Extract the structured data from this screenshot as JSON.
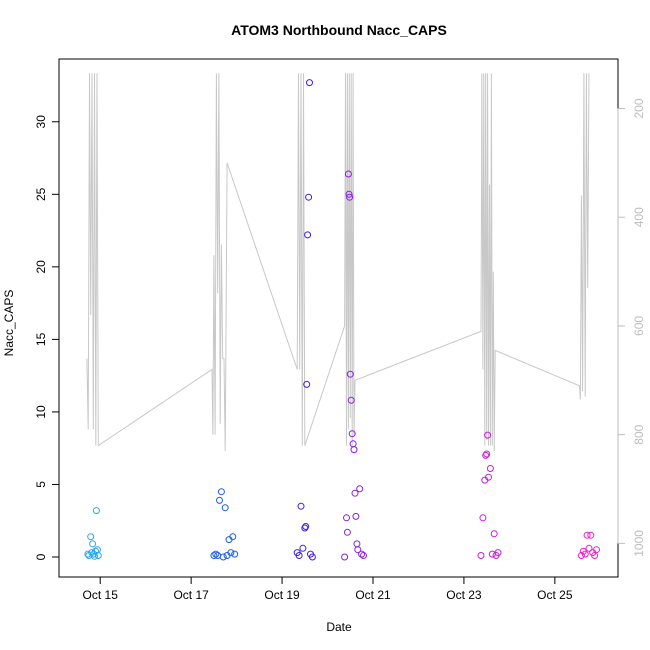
{
  "chart_data": {
    "type": "scatter",
    "title": "ATOM3 Northbound Nacc_CAPS",
    "xlabel": "Date",
    "ylabel": "Nacc_CAPS",
    "x_ticks": [
      {
        "label": "Oct 15",
        "value": "2013-10-15"
      },
      {
        "label": "Oct 17",
        "value": "2013-10-17"
      },
      {
        "label": "Oct 19",
        "value": "2013-10-19"
      },
      {
        "label": "Oct 21",
        "value": "2013-10-21"
      },
      {
        "label": "Oct 23",
        "value": "2013-10-23"
      },
      {
        "label": "Oct 25",
        "value": "2013-10-25"
      }
    ],
    "xlim": [
      "2013-10-14 07:00",
      "2013-10-26 03:00"
    ],
    "ylim": [
      0,
      33.5
    ],
    "y_ticks": [
      0,
      5,
      10,
      15,
      20,
      25,
      30
    ],
    "y2_ticks": [
      200,
      400,
      600,
      800,
      1000
    ],
    "y2lim": [
      1025,
      131
    ],
    "grid": false,
    "series": [
      {
        "type": "points",
        "color": "#29a8f7",
        "points": [
          [
            "2013-10-14 18:00",
            0.1
          ],
          [
            "2013-10-14 19:00",
            1.4
          ],
          [
            "2013-10-14 19:30",
            0.3
          ],
          [
            "2013-10-14 20:00",
            0.9
          ],
          [
            "2013-10-14 20:30",
            0.2
          ],
          [
            "2013-10-14 21:00",
            0.05
          ],
          [
            "2013-10-14 21:30",
            0.4
          ],
          [
            "2013-10-14 22:00",
            3.2
          ],
          [
            "2013-10-14 22:30",
            0.5
          ],
          [
            "2013-10-14 23:00",
            0.1
          ],
          [
            "2013-10-14 17:30",
            0.2
          ]
        ]
      },
      {
        "type": "points",
        "color": "#1f5de8",
        "points": [
          [
            "2013-10-17 13:00",
            0.2
          ],
          [
            "2013-10-17 14:00",
            0.1
          ],
          [
            "2013-10-17 15:00",
            3.9
          ],
          [
            "2013-10-17 16:00",
            4.5
          ],
          [
            "2013-10-17 17:00",
            0.0
          ],
          [
            "2013-10-17 18:00",
            3.4
          ],
          [
            "2013-10-17 19:00",
            0.1
          ],
          [
            "2013-10-17 20:00",
            1.2
          ],
          [
            "2013-10-17 21:00",
            0.3
          ],
          [
            "2013-10-17 22:00",
            1.4
          ],
          [
            "2013-10-17 23:00",
            0.2
          ],
          [
            "2013-10-17 12:00",
            0.1
          ]
        ]
      },
      {
        "type": "points",
        "color": "#3b1fe8",
        "points": [
          [
            "2013-10-19 09:00",
            0.1
          ],
          [
            "2013-10-19 10:00",
            3.5
          ],
          [
            "2013-10-19 11:00",
            0.6
          ],
          [
            "2013-10-19 12:00",
            2.0
          ],
          [
            "2013-10-19 12:30",
            2.1
          ],
          [
            "2013-10-19 13:00",
            11.9
          ],
          [
            "2013-10-19 13:30",
            22.2
          ],
          [
            "2013-10-19 14:00",
            24.8
          ],
          [
            "2013-10-19 14:30",
            32.7
          ],
          [
            "2013-10-19 15:00",
            0.2
          ],
          [
            "2013-10-19 16:00",
            0.0
          ],
          [
            "2013-10-19 08:00",
            0.3
          ]
        ]
      },
      {
        "type": "points",
        "color": "#8c1fe0",
        "points": [
          [
            "2013-10-20 09:00",
            0.0
          ],
          [
            "2013-10-20 10:00",
            2.7
          ],
          [
            "2013-10-20 10:30",
            1.7
          ],
          [
            "2013-10-20 11:00",
            26.4
          ],
          [
            "2013-10-20 11:20",
            25.0
          ],
          [
            "2013-10-20 11:40",
            24.8
          ],
          [
            "2013-10-20 12:00",
            12.6
          ],
          [
            "2013-10-20 12:30",
            10.8
          ],
          [
            "2013-10-20 13:00",
            8.5
          ],
          [
            "2013-10-20 13:30",
            7.8
          ],
          [
            "2013-10-20 14:00",
            7.4
          ],
          [
            "2013-10-20 14:30",
            4.4
          ],
          [
            "2013-10-20 15:00",
            2.8
          ],
          [
            "2013-10-20 15:30",
            0.9
          ],
          [
            "2013-10-20 16:00",
            0.5
          ],
          [
            "2013-10-20 17:00",
            4.7
          ],
          [
            "2013-10-20 18:00",
            0.2
          ],
          [
            "2013-10-20 19:00",
            0.1
          ]
        ]
      },
      {
        "type": "points",
        "color": "#c81fdc",
        "points": [
          [
            "2013-10-23 10:00",
            2.7
          ],
          [
            "2013-10-23 11:00",
            5.3
          ],
          [
            "2013-10-23 11:30",
            7.0
          ],
          [
            "2013-10-23 12:00",
            7.1
          ],
          [
            "2013-10-23 12:30",
            8.4
          ],
          [
            "2013-10-23 13:00",
            5.5
          ],
          [
            "2013-10-23 14:00",
            6.1
          ],
          [
            "2013-10-23 15:00",
            0.2
          ],
          [
            "2013-10-23 16:00",
            1.6
          ],
          [
            "2013-10-23 17:00",
            0.1
          ],
          [
            "2013-10-23 18:00",
            0.3
          ],
          [
            "2013-10-23 09:00",
            0.1
          ]
        ]
      },
      {
        "type": "points",
        "color": "#f01fc8",
        "points": [
          [
            "2013-10-25 14:00",
            0.1
          ],
          [
            "2013-10-25 15:00",
            0.4
          ],
          [
            "2013-10-25 16:00",
            0.2
          ],
          [
            "2013-10-25 17:00",
            1.5
          ],
          [
            "2013-10-25 18:00",
            0.6
          ],
          [
            "2013-10-25 19:00",
            1.5
          ],
          [
            "2013-10-25 20:00",
            0.3
          ],
          [
            "2013-10-25 21:00",
            0.1
          ],
          [
            "2013-10-25 22:00",
            0.5
          ]
        ]
      },
      {
        "type": "line",
        "axis": "right",
        "color": "#c8c8c8",
        "points": [
          [
            "2013-10-14 17:00",
            660
          ],
          [
            "2013-10-14 17:40",
            790
          ],
          [
            "2013-10-14 18:20",
            135
          ],
          [
            "2013-10-14 19:00",
            580
          ],
          [
            "2013-10-14 19:40",
            135
          ],
          [
            "2013-10-14 20:20",
            790
          ],
          [
            "2013-10-14 21:00",
            135
          ],
          [
            "2013-10-14 21:40",
            820
          ],
          [
            "2013-10-14 22:20",
            135
          ],
          [
            "2013-10-14 23:00",
            820
          ],
          [
            "2013-10-17 11:00",
            680
          ],
          [
            "2013-10-17 11:30",
            800
          ],
          [
            "2013-10-17 12:00",
            470
          ],
          [
            "2013-10-17 12:40",
            800
          ],
          [
            "2013-10-17 13:20",
            135
          ],
          [
            "2013-10-17 14:00",
            540
          ],
          [
            "2013-10-17 14:40",
            135
          ],
          [
            "2013-10-17 15:20",
            780
          ],
          [
            "2013-10-17 16:00",
            450
          ],
          [
            "2013-10-17 16:40",
            660
          ],
          [
            "2013-10-17 17:20",
            660
          ],
          [
            "2013-10-17 18:00",
            830
          ],
          [
            "2013-10-17 19:00",
            300
          ],
          [
            "2013-10-19 08:00",
            680
          ],
          [
            "2013-10-19 08:40",
            135
          ],
          [
            "2013-10-19 09:20",
            680
          ],
          [
            "2013-10-19 10:00",
            135
          ],
          [
            "2013-10-19 10:40",
            820
          ],
          [
            "2013-10-19 11:20",
            135
          ],
          [
            "2013-10-19 12:00",
            820
          ],
          [
            "2013-10-20 09:00",
            600
          ],
          [
            "2013-10-20 09:30",
            135
          ],
          [
            "2013-10-20 10:00",
            820
          ],
          [
            "2013-10-20 10:30",
            135
          ],
          [
            "2013-10-20 11:00",
            790
          ],
          [
            "2013-10-20 11:30",
            135
          ],
          [
            "2013-10-20 12:00",
            770
          ],
          [
            "2013-10-20 12:30",
            135
          ],
          [
            "2013-10-20 13:00",
            820
          ],
          [
            "2013-10-20 13:30",
            135
          ],
          [
            "2013-10-20 14:00",
            800
          ],
          [
            "2013-10-20 14:30",
            700
          ],
          [
            "2013-10-23 09:00",
            610
          ],
          [
            "2013-10-23 09:30",
            135
          ],
          [
            "2013-10-23 10:00",
            680
          ],
          [
            "2013-10-23 10:30",
            135
          ],
          [
            "2013-10-23 11:00",
            820
          ],
          [
            "2013-10-23 11:30",
            135
          ],
          [
            "2013-10-23 12:00",
            810
          ],
          [
            "2013-10-23 12:30",
            135
          ],
          [
            "2013-10-23 13:00",
            820
          ],
          [
            "2013-10-23 13:30",
            340
          ],
          [
            "2013-10-23 14:00",
            820
          ],
          [
            "2013-10-23 14:30",
            135
          ],
          [
            "2013-10-23 15:00",
            820
          ],
          [
            "2013-10-23 15:30",
            500
          ],
          [
            "2013-10-23 16:00",
            830
          ],
          [
            "2013-10-23 16:30",
            645
          ],
          [
            "2013-10-25 13:00",
            710
          ],
          [
            "2013-10-25 13:30",
            735
          ],
          [
            "2013-10-25 14:00",
            360
          ],
          [
            "2013-10-25 14:40",
            720
          ],
          [
            "2013-10-25 15:20",
            135
          ],
          [
            "2013-10-25 16:00",
            730
          ],
          [
            "2013-10-25 16:40",
            135
          ],
          [
            "2013-10-25 17:20",
            530
          ],
          [
            "2013-10-25 18:00",
            135
          ]
        ]
      }
    ]
  }
}
